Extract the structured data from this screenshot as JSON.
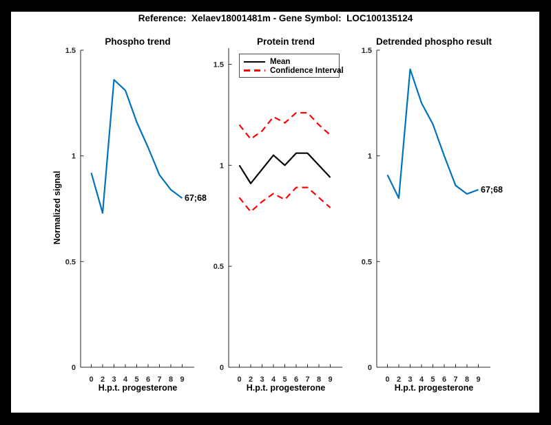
{
  "figure": {
    "title": "Reference:  Xelaev18001481m - Gene Symbol:  LOC100135124"
  },
  "colors": {
    "frame": "#000000",
    "figure_background": "#ffffff",
    "axis": "#262626",
    "trend_blue": "#0072BD",
    "mean_black": "#000000",
    "ci_red": "#FF0000"
  },
  "chart_data": [
    {
      "type": "line",
      "title": "Phospho trend",
      "xlabel": "H.p.t. progesterone",
      "ylabel": "Normalized signal",
      "categories": [
        "0",
        "2",
        "3",
        "4",
        "5",
        "6",
        "7",
        "8",
        "9"
      ],
      "yticks": [
        0,
        0.5,
        1,
        1.5
      ],
      "ylim": [
        0,
        1.5
      ],
      "grid": false,
      "annotation": "67;68",
      "series": [
        {
          "color": "#0072BD",
          "style": "solid",
          "values": [
            0.92,
            0.73,
            1.36,
            1.31,
            1.16,
            1.04,
            0.91,
            0.84,
            0.8
          ]
        }
      ]
    },
    {
      "type": "line",
      "title": "Protein trend",
      "xlabel": "H.p.t. progesterone",
      "categories": [
        "0",
        "2",
        "3",
        "4",
        "5",
        "6",
        "7",
        "8",
        "9"
      ],
      "yticks": [
        0,
        0.5,
        1,
        1.5
      ],
      "ylim": [
        0,
        1.58
      ],
      "grid": false,
      "legend_position": "top-left",
      "series": [
        {
          "name": "Mean",
          "color": "#000000",
          "style": "solid",
          "values": [
            1.0,
            0.91,
            0.98,
            1.05,
            1.0,
            1.06,
            1.06,
            1.0,
            0.94
          ]
        },
        {
          "name": "Confidence Interval",
          "color": "#FF0000",
          "style": "dashed",
          "values": [
            1.2,
            1.13,
            1.17,
            1.24,
            1.21,
            1.26,
            1.26,
            1.2,
            1.15
          ]
        },
        {
          "name": "Confidence Interval",
          "color": "#FF0000",
          "style": "dashed",
          "values": [
            0.84,
            0.77,
            0.82,
            0.86,
            0.83,
            0.89,
            0.89,
            0.84,
            0.79
          ]
        }
      ]
    },
    {
      "type": "line",
      "title": "Detrended phospho result",
      "xlabel": "H.p.t. progesterone",
      "categories": [
        "0",
        "2",
        "3",
        "4",
        "5",
        "6",
        "7",
        "8",
        "9"
      ],
      "yticks": [
        0,
        0.5,
        1,
        1.5
      ],
      "ylim": [
        0,
        1.5
      ],
      "grid": false,
      "annotation": "67;68",
      "series": [
        {
          "color": "#0072BD",
          "style": "solid",
          "values": [
            0.91,
            0.8,
            1.41,
            1.25,
            1.15,
            1.0,
            0.86,
            0.82,
            0.84
          ]
        }
      ]
    }
  ]
}
